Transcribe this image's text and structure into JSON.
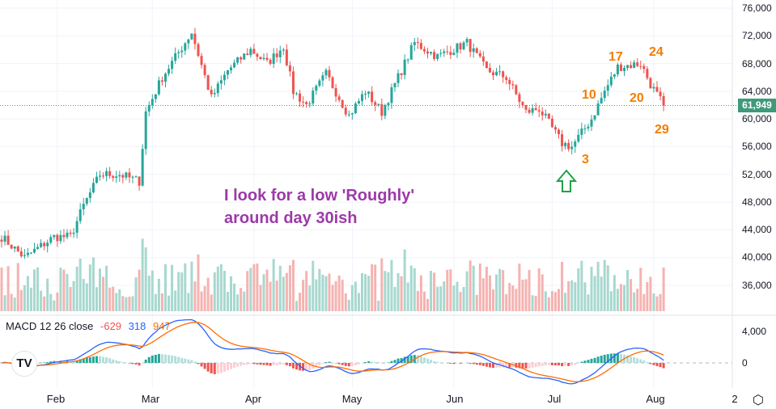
{
  "chart_data": {
    "type": "candlestick",
    "title": "",
    "x_unit": "day index from Jan 15",
    "close_keypoints": [
      [
        0,
        43000
      ],
      [
        7,
        40000
      ],
      [
        16,
        43000
      ],
      [
        21,
        43000
      ],
      [
        25,
        47500
      ],
      [
        30,
        52000
      ],
      [
        36,
        52000
      ],
      [
        42,
        51000
      ],
      [
        44,
        61000
      ],
      [
        49,
        66000
      ],
      [
        58,
        72500
      ],
      [
        64,
        63000
      ],
      [
        69,
        67000
      ],
      [
        76,
        70000
      ],
      [
        81,
        68000
      ],
      [
        86,
        70500
      ],
      [
        89,
        64000
      ],
      [
        93,
        62000
      ],
      [
        99,
        66500
      ],
      [
        106,
        60500
      ],
      [
        111,
        64000
      ],
      [
        116,
        61000
      ],
      [
        121,
        66000
      ],
      [
        126,
        71000
      ],
      [
        133,
        69000
      ],
      [
        142,
        71000
      ],
      [
        148,
        67000
      ],
      [
        154,
        66000
      ],
      [
        160,
        61000
      ],
      [
        164,
        61500
      ],
      [
        171,
        56500
      ],
      [
        174,
        56000
      ],
      [
        180,
        60000
      ],
      [
        184,
        64000
      ],
      [
        188,
        67500
      ],
      [
        195,
        68000
      ],
      [
        198,
        65000
      ],
      [
        202,
        61949
      ]
    ],
    "ylim": [
      34000,
      77000
    ],
    "y_ticks": [
      "76,000",
      "72,000",
      "68,000",
      "64,000",
      "60,000",
      "56,000",
      "52,000",
      "48,000",
      "44,000",
      "40,000",
      "36,000"
    ],
    "y_tick_values": [
      76000,
      72000,
      68000,
      64000,
      60000,
      56000,
      52000,
      48000,
      44000,
      40000,
      36000
    ],
    "x_ticks": [
      {
        "label": "Feb",
        "day": 17
      },
      {
        "label": "Mar",
        "day": 46
      },
      {
        "label": "Apr",
        "day": 77
      },
      {
        "label": "May",
        "day": 107
      },
      {
        "label": "Jun",
        "day": 138
      },
      {
        "label": "Jul",
        "day": 168
      },
      {
        "label": "Aug",
        "day": 199
      }
    ],
    "x_extra_label": "2",
    "last_price": "61,949",
    "last_price_value": 61949,
    "macd": {
      "label": "MACD 12 26 close",
      "hist": "-629",
      "macd": "318",
      "signal": "947",
      "ticks": [
        "4,000",
        "0"
      ],
      "tick_values": [
        4000,
        0
      ]
    },
    "annotations": [
      {
        "text": "17",
        "day": 188
      },
      {
        "text": "24",
        "day": 200
      },
      {
        "text": "10",
        "day": 180
      },
      {
        "text": "20",
        "day": 194
      },
      {
        "text": "3",
        "day": 177
      },
      {
        "text": "29",
        "day": 202
      }
    ],
    "note": [
      "I look for a low 'Roughly'",
      "around day 30ish"
    ],
    "colors": {
      "up": "#26a69a",
      "down": "#ef5350",
      "macd": "#2962ff",
      "signal": "#ff6d00",
      "annotation": "#f57c00",
      "note": "#9c3aa8",
      "arrow": "#22a04a"
    }
  }
}
